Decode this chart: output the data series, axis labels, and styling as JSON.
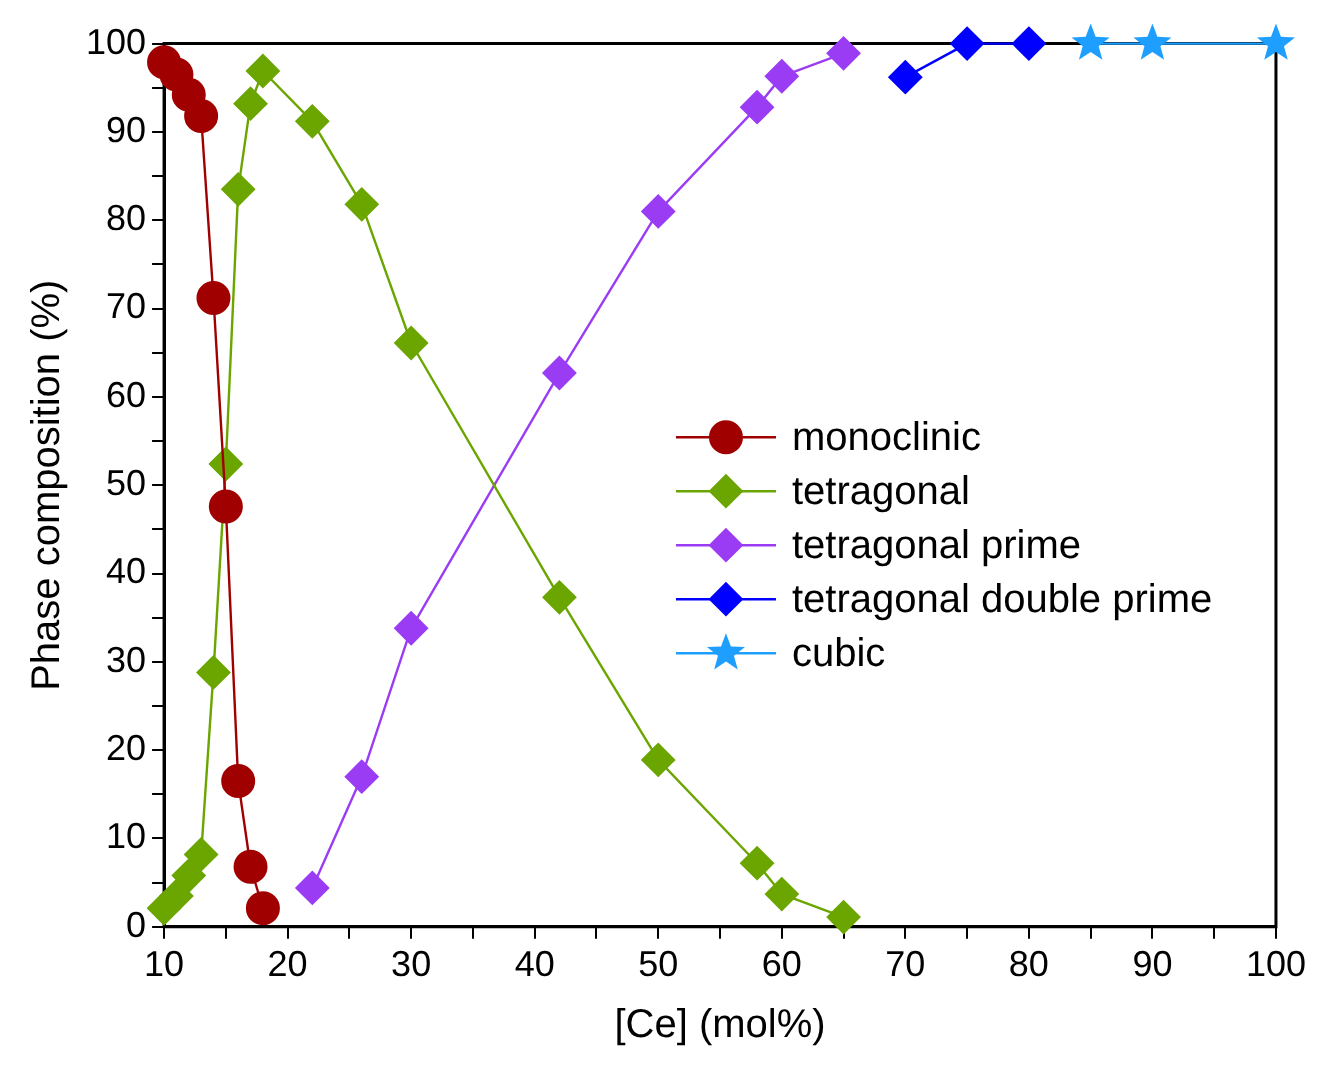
{
  "chart_data": {
    "type": "line",
    "xlabel": "[Ce] (mol%)",
    "ylabel": "Phase composition (%)",
    "xlim": [
      10,
      100
    ],
    "ylim": [
      0,
      100
    ],
    "xticks": [
      10,
      {
        "value": 15,
        "label": null
      },
      20,
      {
        "value": 25,
        "label": null
      },
      30,
      {
        "value": 35,
        "label": null
      },
      40,
      {
        "value": 45,
        "label": null
      },
      50,
      {
        "value": 55,
        "label": null
      },
      60,
      {
        "value": 65,
        "label": null
      },
      70,
      {
        "value": 75,
        "label": null
      },
      80,
      {
        "value": 85,
        "label": null
      },
      90,
      {
        "value": 95,
        "label": null
      },
      100
    ],
    "yticks": [
      0,
      {
        "value": 5,
        "label": null
      },
      10,
      {
        "value": 15,
        "label": null
      },
      20,
      {
        "value": 25,
        "label": null
      },
      30,
      {
        "value": 35,
        "label": null
      },
      40,
      {
        "value": 45,
        "label": null
      },
      50,
      {
        "value": 55,
        "label": null
      },
      60,
      {
        "value": 65,
        "label": null
      },
      70,
      {
        "value": 75,
        "label": null
      },
      80,
      {
        "value": 85,
        "label": null
      },
      90,
      {
        "value": 95,
        "label": null
      },
      100
    ],
    "grid": false,
    "legend": "center right",
    "line_style": "solid",
    "series": [
      {
        "name": "monoclinic",
        "color": "#a00000",
        "marker": "circle",
        "x": [
          10,
          11,
          12,
          13,
          14,
          15,
          16,
          17,
          18
        ],
        "values": [
          97.9,
          96.5,
          94.2,
          91.8,
          71.2,
          47.6,
          16.5,
          6.8,
          2.1
        ]
      },
      {
        "name": "tetragonal",
        "color": "#6aa500",
        "marker": "diamond",
        "x": [
          10,
          11,
          12,
          13,
          14,
          15,
          16,
          17,
          18,
          22,
          26,
          30,
          42,
          50,
          58,
          60,
          65
        ],
        "values": [
          2.1,
          3.5,
          5.8,
          8.2,
          28.8,
          52.4,
          83.5,
          93.2,
          96.9,
          91.2,
          81.8,
          66.1,
          37.3,
          18.9,
          7.2,
          3.7,
          1.1
        ]
      },
      {
        "name": "tetragonal prime",
        "color": "#9b3cf5",
        "marker": "diamond",
        "x": [
          22,
          26,
          30,
          42,
          50,
          58,
          60,
          65
        ],
        "values": [
          4.4,
          17,
          33.8,
          62.7,
          81,
          92.8,
          96.3,
          98.9
        ]
      },
      {
        "name": "tetragonal double prime",
        "color": "#0000ff",
        "marker": "diamond",
        "x": [
          70,
          75,
          80
        ],
        "values": [
          96.2,
          100,
          100
        ]
      },
      {
        "name": "cubic",
        "color": "#1e9fff",
        "marker": "star",
        "x": [
          85,
          90,
          100
        ],
        "values": [
          100,
          100,
          100
        ]
      }
    ]
  }
}
